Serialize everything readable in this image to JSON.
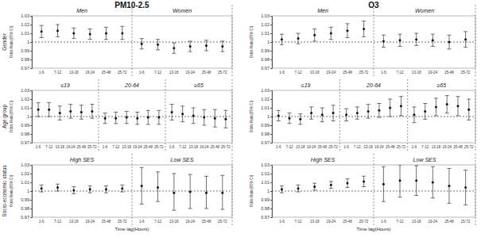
{
  "chart_data": [
    {
      "type": "errorbar",
      "title": "PM10-2.5",
      "row_label": "Gender",
      "ylabel": "Odds Ratio(95% CI)",
      "categories": [
        "1-6",
        "7-12",
        "13-18",
        "19-24",
        "25-48",
        "25-72"
      ],
      "ylim": [
        0.97,
        1.03
      ],
      "yticks": [
        0.97,
        0.98,
        0.99,
        1,
        1.01,
        1.02,
        1.03
      ],
      "hline": 1,
      "series": [
        {
          "name": "Men",
          "values": [
            1.012,
            1.013,
            1.01,
            1.009,
            1.01,
            1.01
          ],
          "lower": [
            1.005,
            1.006,
            1.004,
            1.003,
            1.003,
            1.003
          ],
          "upper": [
            1.019,
            1.02,
            1.016,
            1.015,
            1.017,
            1.018
          ]
        },
        {
          "name": "Women",
          "values": [
            0.998,
            0.997,
            0.993,
            0.995,
            0.996,
            0.995
          ],
          "lower": [
            0.992,
            0.991,
            0.987,
            0.989,
            0.99,
            0.989
          ],
          "upper": [
            1.004,
            1.003,
            0.999,
            1.001,
            1.002,
            1.001
          ]
        }
      ]
    },
    {
      "type": "errorbar",
      "title": "O3",
      "ylabel": "Odds Ratio(95% CI)",
      "categories": [
        "1-6",
        "7-12",
        "13-18",
        "19-24",
        "25-48",
        "25-72"
      ],
      "ylim": [
        0.97,
        1.03
      ],
      "yticks": [
        0.97,
        0.98,
        0.99,
        1,
        1.01,
        1.02,
        1.03
      ],
      "hline": 1,
      "series": [
        {
          "name": "Men",
          "values": [
            1.003,
            1.004,
            1.008,
            1.01,
            1.013,
            1.015
          ],
          "lower": [
            0.997,
            0.998,
            1.001,
            1.003,
            1.005,
            1.006
          ],
          "upper": [
            1.009,
            1.01,
            1.015,
            1.017,
            1.021,
            1.024
          ]
        },
        {
          "name": "Women",
          "values": [
            1.001,
            1.002,
            1.003,
            1.002,
            1.0,
            1.003
          ],
          "lower": [
            0.994,
            0.995,
            0.996,
            0.995,
            0.992,
            0.994
          ],
          "upper": [
            1.008,
            1.009,
            1.01,
            1.009,
            1.008,
            1.012
          ]
        }
      ]
    },
    {
      "type": "errorbar",
      "row_label": "Age group",
      "ylabel": "Odds Ratio(95% CI)",
      "categories": [
        "1-6",
        "7-12",
        "13-18",
        "19-24",
        "25-48",
        "25-72"
      ],
      "ylim": [
        0.97,
        1.03
      ],
      "yticks": [
        0.97,
        0.98,
        0.99,
        1,
        1.01,
        1.02,
        1.03
      ],
      "hline": 1,
      "series": [
        {
          "name": "≤19",
          "values": [
            1.008,
            1.008,
            1.004,
            1.006,
            1.005,
            1.006
          ],
          "lower": [
            1.0,
            1.0,
            0.996,
            0.998,
            0.997,
            0.998
          ],
          "upper": [
            1.016,
            1.016,
            1.012,
            1.014,
            1.013,
            1.014
          ]
        },
        {
          "name": "20-64",
          "values": [
            0.998,
            0.998,
            0.999,
            0.998,
            0.999,
            0.999
          ],
          "lower": [
            0.992,
            0.992,
            0.992,
            0.991,
            0.991,
            0.991
          ],
          "upper": [
            1.004,
            1.005,
            1.006,
            1.005,
            1.007,
            1.007
          ]
        },
        {
          "name": "≥65",
          "values": [
            1.005,
            1.003,
            1.001,
            0.999,
            0.998,
            0.997
          ],
          "lower": [
            0.996,
            0.994,
            0.992,
            0.99,
            0.988,
            0.987
          ],
          "upper": [
            1.014,
            1.012,
            1.01,
            1.008,
            1.008,
            1.007
          ]
        }
      ]
    },
    {
      "type": "errorbar",
      "ylabel": "Odds Ratio(95% CI)",
      "categories": [
        "1-6",
        "7-12",
        "13-18",
        "19-24",
        "25-48",
        "25-72"
      ],
      "ylim": [
        0.97,
        1.03
      ],
      "yticks": [
        0.97,
        0.98,
        0.99,
        1,
        1.01,
        1.02,
        1.03
      ],
      "hline": 1,
      "series": [
        {
          "name": "≤19",
          "values": [
            1.001,
            0.998,
            0.997,
            1.004,
            1.002,
            1.004
          ],
          "lower": [
            0.995,
            0.992,
            0.991,
            0.997,
            0.994,
            0.995
          ],
          "upper": [
            1.007,
            1.004,
            1.003,
            1.011,
            1.01,
            1.013
          ]
        },
        {
          "name": "20-64",
          "values": [
            1.002,
            1.004,
            1.006,
            1.007,
            1.01,
            1.012
          ],
          "lower": [
            0.995,
            0.997,
            0.998,
            0.999,
            1.0,
            1.001
          ],
          "upper": [
            1.009,
            1.011,
            1.014,
            1.015,
            1.02,
            1.023
          ]
        },
        {
          "name": "≥65",
          "values": [
            1.002,
            1.006,
            1.011,
            1.014,
            1.012,
            1.008
          ],
          "lower": [
            0.993,
            0.997,
            1.001,
            1.004,
            1.001,
            0.996
          ],
          "upper": [
            1.011,
            1.015,
            1.021,
            1.024,
            1.023,
            1.02
          ]
        }
      ]
    },
    {
      "type": "errorbar",
      "row_label": "Socio-economic status",
      "ylabel": "Odds Ratio(95% CI)",
      "xlabel": "Time lag(Hours)",
      "categories": [
        "1-6",
        "7-12",
        "13-18",
        "19-24",
        "25-48",
        "25-72"
      ],
      "ylim": [
        0.97,
        1.03
      ],
      "yticks": [
        0.97,
        0.98,
        0.99,
        1,
        1.01,
        1.02,
        1.03
      ],
      "hline": 1,
      "series": [
        {
          "name": "High SES",
          "values": [
            1.003,
            1.004,
            1.001,
            1.002,
            1.002,
            1.003
          ],
          "lower": [
            0.999,
            1.0,
            0.997,
            0.998,
            0.998,
            0.999
          ],
          "upper": [
            1.007,
            1.008,
            1.005,
            1.006,
            1.006,
            1.007
          ]
        },
        {
          "name": "Low SES",
          "values": [
            1.006,
            1.004,
            0.998,
            0.999,
            0.998,
            0.998
          ],
          "lower": [
            0.985,
            0.988,
            0.978,
            0.98,
            0.98,
            0.979
          ],
          "upper": [
            1.027,
            1.022,
            1.02,
            1.019,
            1.017,
            1.018
          ]
        }
      ]
    },
    {
      "type": "errorbar",
      "ylabel": "Odds Ratio(95% CI)",
      "xlabel": "Time lag(Hours)",
      "categories": [
        "1-6",
        "7-12",
        "13-18",
        "19-24",
        "25-48",
        "25-72"
      ],
      "ylim": [
        0.97,
        1.03
      ],
      "yticks": [
        0.97,
        0.98,
        0.99,
        1,
        1.01,
        1.02,
        1.03
      ],
      "hline": 1,
      "series": [
        {
          "name": "High SES",
          "values": [
            1.002,
            1.003,
            1.005,
            1.007,
            1.009,
            1.011
          ],
          "lower": [
            0.998,
            0.999,
            1.001,
            1.003,
            1.004,
            1.005
          ],
          "upper": [
            1.006,
            1.007,
            1.009,
            1.011,
            1.014,
            1.017
          ]
        },
        {
          "name": "Low SES",
          "values": [
            1.008,
            1.012,
            1.012,
            1.01,
            1.006,
            1.004
          ],
          "lower": [
            0.988,
            0.993,
            0.995,
            0.992,
            0.986,
            0.984
          ],
          "upper": [
            1.028,
            1.03,
            1.029,
            1.028,
            1.026,
            1.024
          ]
        }
      ]
    }
  ]
}
